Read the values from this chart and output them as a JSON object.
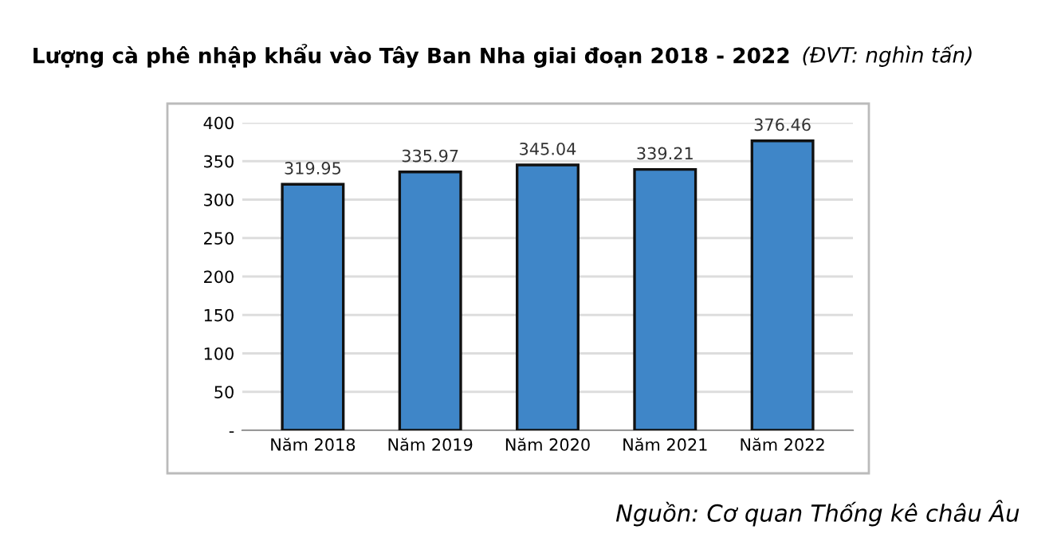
{
  "chart_data": {
    "type": "bar",
    "title": "Lượng cà phê nhập khẩu vào Tây Ban Nha giai đoạn 2018 - 2022",
    "subtitle": "(ĐVT: nghìn tấn)",
    "categories": [
      "Năm 2018",
      "Năm 2019",
      "Năm 2020",
      "Năm 2021",
      "Năm 2022"
    ],
    "values": [
      319.95,
      335.97,
      345.04,
      339.21,
      376.46
    ],
    "color": "#3f86c8",
    "ylim": [
      0,
      400
    ],
    "yticks": [
      {
        "value": 0,
        "label": "-"
      },
      50,
      100,
      150,
      200,
      250,
      300,
      350,
      400
    ],
    "grid": "y",
    "data_labels": true,
    "legend": false,
    "annotations": [
      "Nguồn: Cơ quan Thống kê châu Âu"
    ]
  }
}
